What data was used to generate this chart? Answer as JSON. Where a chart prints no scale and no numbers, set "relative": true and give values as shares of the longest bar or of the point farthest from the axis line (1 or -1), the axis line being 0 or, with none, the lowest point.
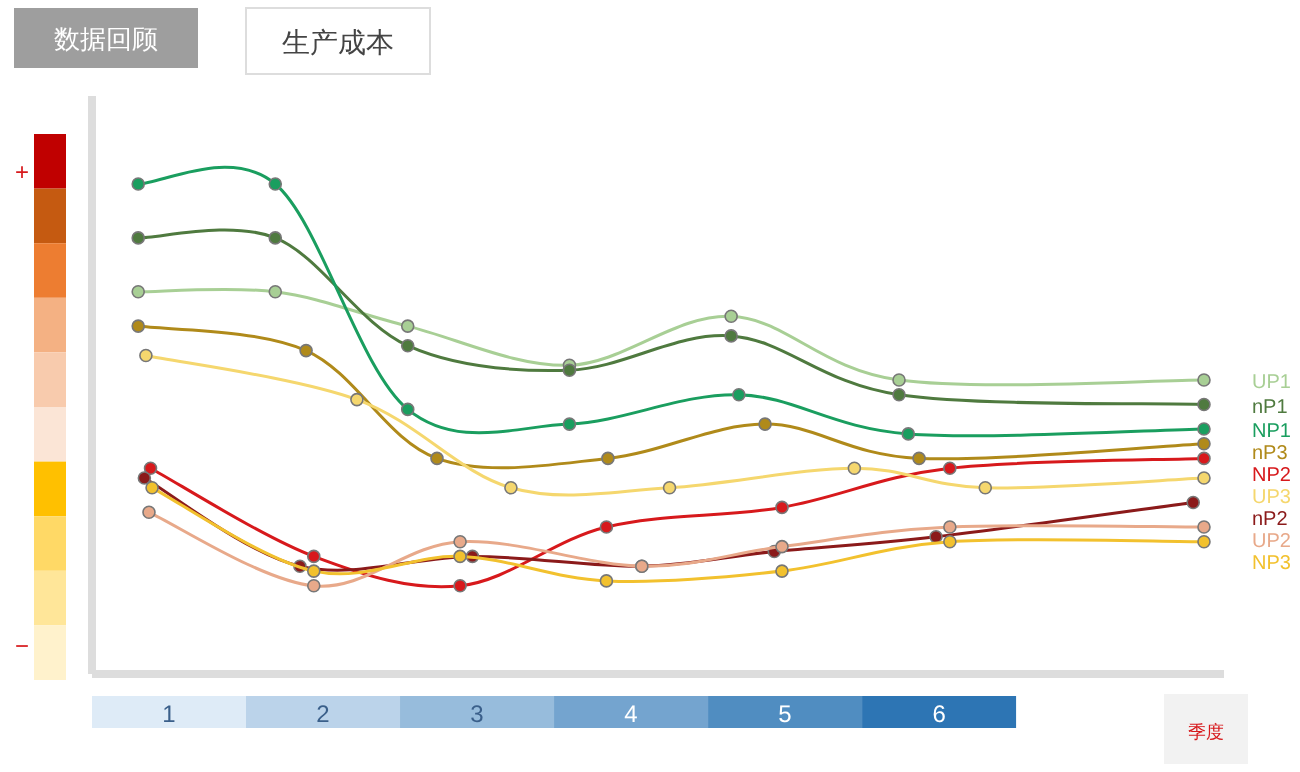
{
  "chart_data": {
    "type": "line",
    "title": "生产成本",
    "subtitle": "数据回顾",
    "xlabel": "季度",
    "relative": true,
    "marker": "circle",
    "annotations": [
      "+",
      "−"
    ],
    "xlim": [
      0.5,
      7.85
    ],
    "xticks": [
      1,
      2,
      3,
      4,
      5,
      6
    ],
    "series": [
      {
        "name": "UP1",
        "color": "#a8cf95",
        "x": [
          0.8,
          1.69,
          2.55,
          3.6,
          4.65,
          5.74,
          7.72
        ],
        "values": [
          0.78,
          0.78,
          0.71,
          0.63,
          0.73,
          0.6,
          0.6
        ]
      },
      {
        "name": "nP1",
        "color": "#4f7a3f",
        "x": [
          0.8,
          1.69,
          2.55,
          3.6,
          4.65,
          5.74,
          7.72
        ],
        "values": [
          0.89,
          0.89,
          0.67,
          0.62,
          0.69,
          0.57,
          0.55
        ]
      },
      {
        "name": "NP1",
        "color": "#1a9e5f",
        "x": [
          0.8,
          1.69,
          2.55,
          3.6,
          4.7,
          5.8,
          7.72
        ],
        "values": [
          1.0,
          1.0,
          0.54,
          0.51,
          0.57,
          0.49,
          0.5
        ]
      },
      {
        "name": "nP3",
        "color": "#b08a1a",
        "x": [
          0.8,
          1.89,
          2.74,
          3.85,
          4.87,
          5.87,
          7.72
        ],
        "values": [
          0.71,
          0.66,
          0.44,
          0.44,
          0.51,
          0.44,
          0.47
        ]
      },
      {
        "name": "NP2",
        "color": "#d7191c",
        "x": [
          0.88,
          1.94,
          2.89,
          3.84,
          4.98,
          6.07,
          7.72
        ],
        "values": [
          0.42,
          0.24,
          0.18,
          0.3,
          0.34,
          0.42,
          0.44
        ]
      },
      {
        "name": "UP3",
        "color": "#f5d76e",
        "x": [
          0.85,
          2.22,
          3.22,
          4.25,
          5.45,
          6.3,
          7.72
        ],
        "values": [
          0.65,
          0.56,
          0.38,
          0.38,
          0.42,
          0.38,
          0.4
        ]
      },
      {
        "name": "nP2",
        "color": "#8b1a1a",
        "x": [
          0.84,
          1.85,
          2.97,
          4.07,
          4.93,
          5.98,
          7.65
        ],
        "values": [
          0.4,
          0.22,
          0.24,
          0.22,
          0.25,
          0.28,
          0.35
        ]
      },
      {
        "name": "UP2",
        "color": "#e8a98a",
        "x": [
          0.87,
          1.94,
          2.89,
          4.07,
          4.98,
          6.07,
          7.72
        ],
        "values": [
          0.33,
          0.18,
          0.27,
          0.22,
          0.26,
          0.3,
          0.3
        ]
      },
      {
        "name": "NP3",
        "color": "#f2c12e",
        "x": [
          0.89,
          1.94,
          2.89,
          3.84,
          4.98,
          6.07,
          7.72
        ],
        "values": [
          0.38,
          0.21,
          0.24,
          0.19,
          0.21,
          0.27,
          0.27
        ]
      }
    ]
  }
}
